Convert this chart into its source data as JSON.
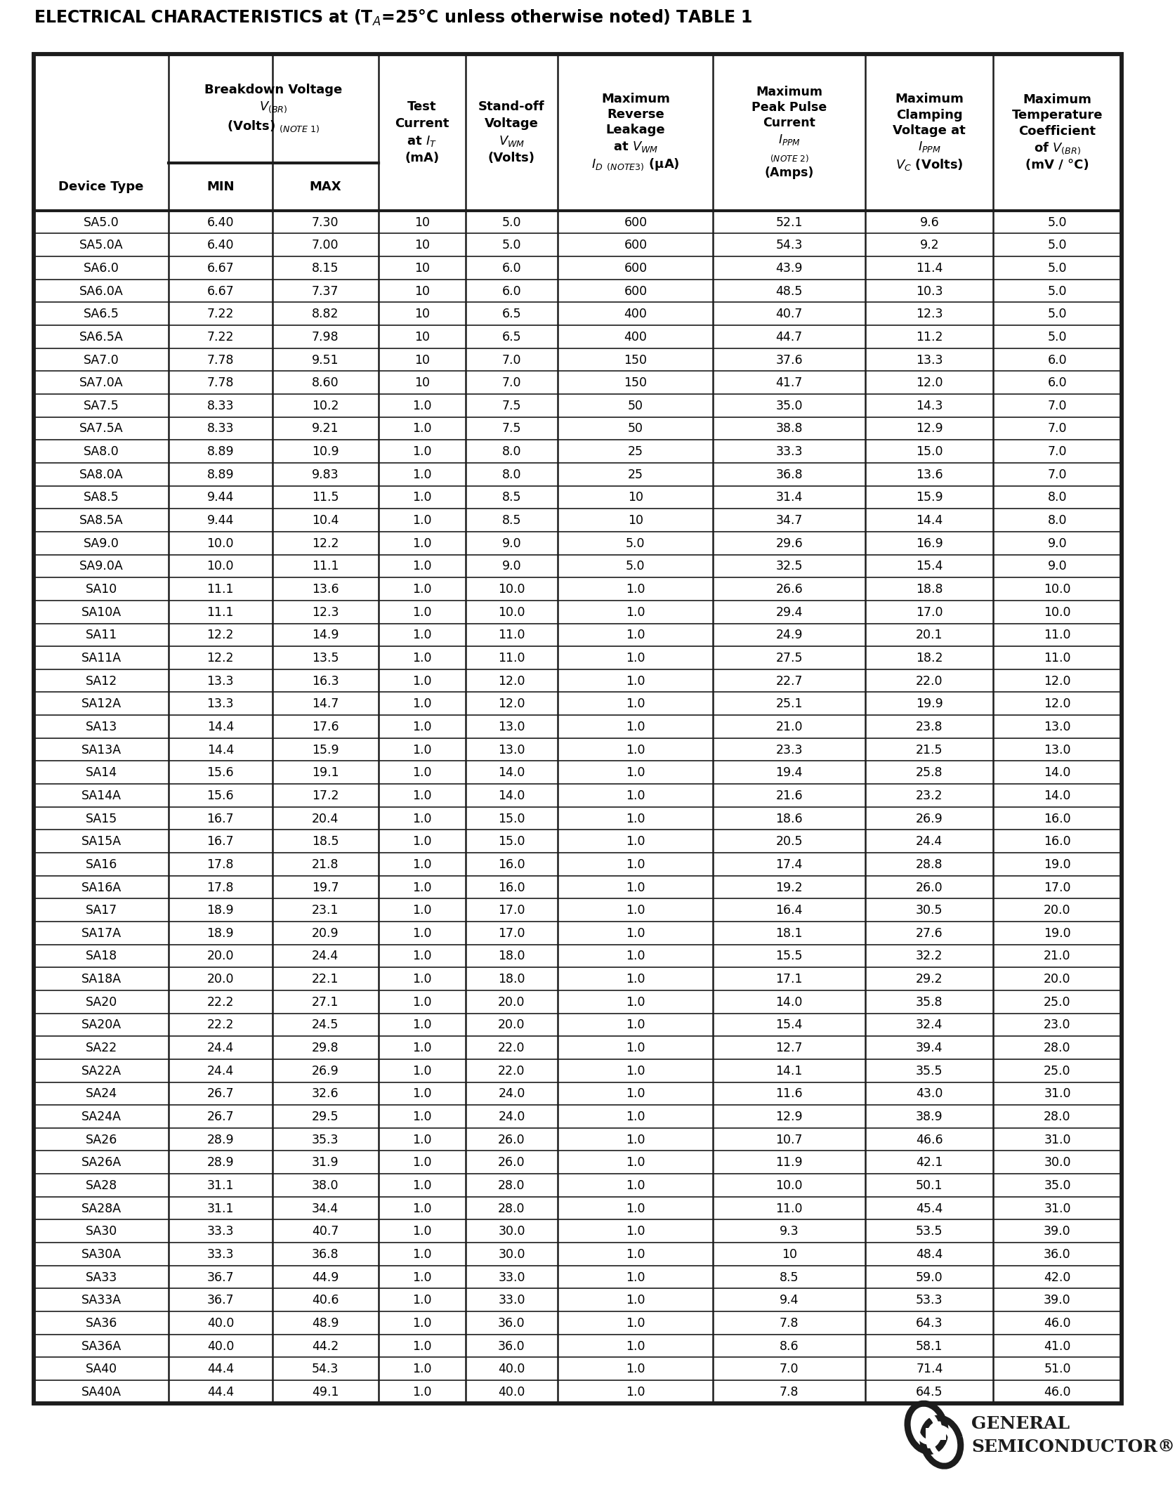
{
  "title_parts": [
    "ELECTRICAL CHARACTERISTICS at (T",
    "A",
    "=25°C unless otherwise noted) TABLE 1"
  ],
  "rows": [
    [
      "SA5.0",
      "6.40",
      "7.30",
      "10",
      "5.0",
      "600",
      "52.1",
      "9.6",
      "5.0"
    ],
    [
      "SA5.0A",
      "6.40",
      "7.00",
      "10",
      "5.0",
      "600",
      "54.3",
      "9.2",
      "5.0"
    ],
    [
      "SA6.0",
      "6.67",
      "8.15",
      "10",
      "6.0",
      "600",
      "43.9",
      "11.4",
      "5.0"
    ],
    [
      "SA6.0A",
      "6.67",
      "7.37",
      "10",
      "6.0",
      "600",
      "48.5",
      "10.3",
      "5.0"
    ],
    [
      "SA6.5",
      "7.22",
      "8.82",
      "10",
      "6.5",
      "400",
      "40.7",
      "12.3",
      "5.0"
    ],
    [
      "SA6.5A",
      "7.22",
      "7.98",
      "10",
      "6.5",
      "400",
      "44.7",
      "11.2",
      "5.0"
    ],
    [
      "SA7.0",
      "7.78",
      "9.51",
      "10",
      "7.0",
      "150",
      "37.6",
      "13.3",
      "6.0"
    ],
    [
      "SA7.0A",
      "7.78",
      "8.60",
      "10",
      "7.0",
      "150",
      "41.7",
      "12.0",
      "6.0"
    ],
    [
      "SA7.5",
      "8.33",
      "10.2",
      "1.0",
      "7.5",
      "50",
      "35.0",
      "14.3",
      "7.0"
    ],
    [
      "SA7.5A",
      "8.33",
      "9.21",
      "1.0",
      "7.5",
      "50",
      "38.8",
      "12.9",
      "7.0"
    ],
    [
      "SA8.0",
      "8.89",
      "10.9",
      "1.0",
      "8.0",
      "25",
      "33.3",
      "15.0",
      "7.0"
    ],
    [
      "SA8.0A",
      "8.89",
      "9.83",
      "1.0",
      "8.0",
      "25",
      "36.8",
      "13.6",
      "7.0"
    ],
    [
      "SA8.5",
      "9.44",
      "11.5",
      "1.0",
      "8.5",
      "10",
      "31.4",
      "15.9",
      "8.0"
    ],
    [
      "SA8.5A",
      "9.44",
      "10.4",
      "1.0",
      "8.5",
      "10",
      "34.7",
      "14.4",
      "8.0"
    ],
    [
      "SA9.0",
      "10.0",
      "12.2",
      "1.0",
      "9.0",
      "5.0",
      "29.6",
      "16.9",
      "9.0"
    ],
    [
      "SA9.0A",
      "10.0",
      "11.1",
      "1.0",
      "9.0",
      "5.0",
      "32.5",
      "15.4",
      "9.0"
    ],
    [
      "SA10",
      "11.1",
      "13.6",
      "1.0",
      "10.0",
      "1.0",
      "26.6",
      "18.8",
      "10.0"
    ],
    [
      "SA10A",
      "11.1",
      "12.3",
      "1.0",
      "10.0",
      "1.0",
      "29.4",
      "17.0",
      "10.0"
    ],
    [
      "SA11",
      "12.2",
      "14.9",
      "1.0",
      "11.0",
      "1.0",
      "24.9",
      "20.1",
      "11.0"
    ],
    [
      "SA11A",
      "12.2",
      "13.5",
      "1.0",
      "11.0",
      "1.0",
      "27.5",
      "18.2",
      "11.0"
    ],
    [
      "SA12",
      "13.3",
      "16.3",
      "1.0",
      "12.0",
      "1.0",
      "22.7",
      "22.0",
      "12.0"
    ],
    [
      "SA12A",
      "13.3",
      "14.7",
      "1.0",
      "12.0",
      "1.0",
      "25.1",
      "19.9",
      "12.0"
    ],
    [
      "SA13",
      "14.4",
      "17.6",
      "1.0",
      "13.0",
      "1.0",
      "21.0",
      "23.8",
      "13.0"
    ],
    [
      "SA13A",
      "14.4",
      "15.9",
      "1.0",
      "13.0",
      "1.0",
      "23.3",
      "21.5",
      "13.0"
    ],
    [
      "SA14",
      "15.6",
      "19.1",
      "1.0",
      "14.0",
      "1.0",
      "19.4",
      "25.8",
      "14.0"
    ],
    [
      "SA14A",
      "15.6",
      "17.2",
      "1.0",
      "14.0",
      "1.0",
      "21.6",
      "23.2",
      "14.0"
    ],
    [
      "SA15",
      "16.7",
      "20.4",
      "1.0",
      "15.0",
      "1.0",
      "18.6",
      "26.9",
      "16.0"
    ],
    [
      "SA15A",
      "16.7",
      "18.5",
      "1.0",
      "15.0",
      "1.0",
      "20.5",
      "24.4",
      "16.0"
    ],
    [
      "SA16",
      "17.8",
      "21.8",
      "1.0",
      "16.0",
      "1.0",
      "17.4",
      "28.8",
      "19.0"
    ],
    [
      "SA16A",
      "17.8",
      "19.7",
      "1.0",
      "16.0",
      "1.0",
      "19.2",
      "26.0",
      "17.0"
    ],
    [
      "SA17",
      "18.9",
      "23.1",
      "1.0",
      "17.0",
      "1.0",
      "16.4",
      "30.5",
      "20.0"
    ],
    [
      "SA17A",
      "18.9",
      "20.9",
      "1.0",
      "17.0",
      "1.0",
      "18.1",
      "27.6",
      "19.0"
    ],
    [
      "SA18",
      "20.0",
      "24.4",
      "1.0",
      "18.0",
      "1.0",
      "15.5",
      "32.2",
      "21.0"
    ],
    [
      "SA18A",
      "20.0",
      "22.1",
      "1.0",
      "18.0",
      "1.0",
      "17.1",
      "29.2",
      "20.0"
    ],
    [
      "SA20",
      "22.2",
      "27.1",
      "1.0",
      "20.0",
      "1.0",
      "14.0",
      "35.8",
      "25.0"
    ],
    [
      "SA20A",
      "22.2",
      "24.5",
      "1.0",
      "20.0",
      "1.0",
      "15.4",
      "32.4",
      "23.0"
    ],
    [
      "SA22",
      "24.4",
      "29.8",
      "1.0",
      "22.0",
      "1.0",
      "12.7",
      "39.4",
      "28.0"
    ],
    [
      "SA22A",
      "24.4",
      "26.9",
      "1.0",
      "22.0",
      "1.0",
      "14.1",
      "35.5",
      "25.0"
    ],
    [
      "SA24",
      "26.7",
      "32.6",
      "1.0",
      "24.0",
      "1.0",
      "11.6",
      "43.0",
      "31.0"
    ],
    [
      "SA24A",
      "26.7",
      "29.5",
      "1.0",
      "24.0",
      "1.0",
      "12.9",
      "38.9",
      "28.0"
    ],
    [
      "SA26",
      "28.9",
      "35.3",
      "1.0",
      "26.0",
      "1.0",
      "10.7",
      "46.6",
      "31.0"
    ],
    [
      "SA26A",
      "28.9",
      "31.9",
      "1.0",
      "26.0",
      "1.0",
      "11.9",
      "42.1",
      "30.0"
    ],
    [
      "SA28",
      "31.1",
      "38.0",
      "1.0",
      "28.0",
      "1.0",
      "10.0",
      "50.1",
      "35.0"
    ],
    [
      "SA28A",
      "31.1",
      "34.4",
      "1.0",
      "28.0",
      "1.0",
      "11.0",
      "45.4",
      "31.0"
    ],
    [
      "SA30",
      "33.3",
      "40.7",
      "1.0",
      "30.0",
      "1.0",
      "9.3",
      "53.5",
      "39.0"
    ],
    [
      "SA30A",
      "33.3",
      "36.8",
      "1.0",
      "30.0",
      "1.0",
      "10",
      "48.4",
      "36.0"
    ],
    [
      "SA33",
      "36.7",
      "44.9",
      "1.0",
      "33.0",
      "1.0",
      "8.5",
      "59.0",
      "42.0"
    ],
    [
      "SA33A",
      "36.7",
      "40.6",
      "1.0",
      "33.0",
      "1.0",
      "9.4",
      "53.3",
      "39.0"
    ],
    [
      "SA36",
      "40.0",
      "48.9",
      "1.0",
      "36.0",
      "1.0",
      "7.8",
      "64.3",
      "46.0"
    ],
    [
      "SA36A",
      "40.0",
      "44.2",
      "1.0",
      "36.0",
      "1.0",
      "8.6",
      "58.1",
      "41.0"
    ],
    [
      "SA40",
      "44.4",
      "54.3",
      "1.0",
      "40.0",
      "1.0",
      "7.0",
      "71.4",
      "51.0"
    ],
    [
      "SA40A",
      "44.4",
      "49.1",
      "1.0",
      "40.0",
      "1.0",
      "7.8",
      "64.5",
      "46.0"
    ]
  ],
  "bg_color": "#ffffff",
  "border_color": "#1c1c1c",
  "text_color": "#000000",
  "header_row_line_color": "#2a2a2a",
  "data_row_line_color": "#3a3a3a"
}
